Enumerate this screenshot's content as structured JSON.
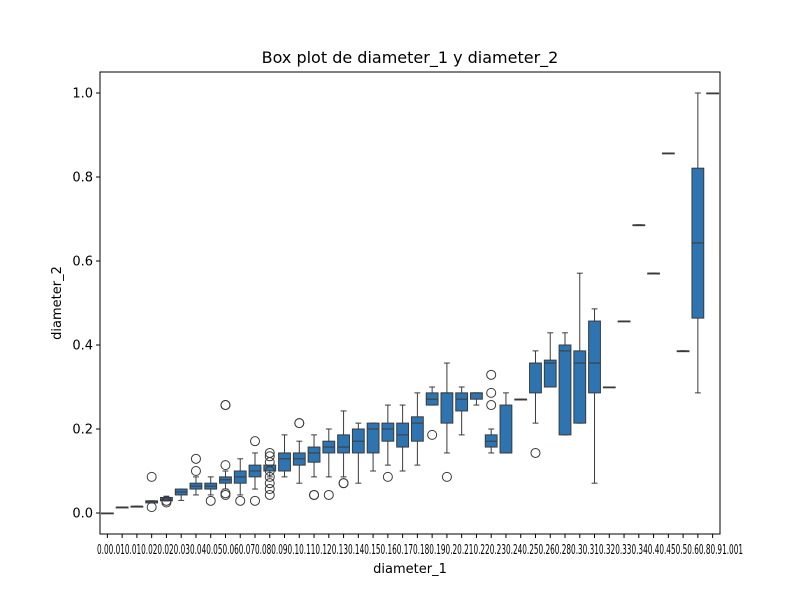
{
  "chart_data": {
    "type": "box",
    "title": "Box plot de diameter_1 y diameter_2",
    "xlabel": "diameter_1",
    "ylabel": "diameter_2",
    "ylim": [
      -0.05,
      1.05
    ],
    "y_ticks": [
      "0.0",
      "0.2",
      "0.4",
      "0.6",
      "0.8",
      "1.0"
    ],
    "y_tick_values": [
      0.0,
      0.2,
      0.4,
      0.6,
      0.8,
      1.0
    ],
    "box_color": "#2e74b0",
    "line_color": "#3a3a3a",
    "grid": false,
    "categories": [
      "0.0",
      "0.01",
      "0.01",
      "0.02",
      "0.02",
      "0.03",
      "0.04",
      "0.05",
      "0.06",
      "0.07",
      "0.08",
      "0.09",
      "0.1",
      "0.11",
      "0.12",
      "0.13",
      "0.14",
      "0.15",
      "0.16",
      "0.17",
      "0.18",
      "0.19",
      "0.2",
      "0.21",
      "0.22",
      "0.23",
      "0.24",
      "0.25",
      "0.26",
      "0.28",
      "0.3",
      "0.31",
      "0.32",
      "0.33",
      "0.34",
      "0.4",
      "0.45",
      "0.5",
      "0.6",
      "0.8",
      "0.9",
      "1.0"
    ],
    "x_tick_text": "0.00.010.010.020.020.030.040.050.060.070.080.090.10.110.120.130.140.150.160.170.180.190.20.210.220.230.240.250.260.280.30.310.320.330.340.40.450.50.60.80.91.001",
    "boxes": [
      {
        "x": 0.0,
        "min": 0.0,
        "q1": 0.0,
        "median": 0.0,
        "q3": 0.0,
        "max": 0.0,
        "outliers": []
      },
      {
        "x": 0.01,
        "min": 0.014,
        "q1": 0.014,
        "median": 0.014,
        "q3": 0.014,
        "max": 0.014,
        "outliers": []
      },
      {
        "x": 0.01,
        "min": 0.016,
        "q1": 0.016,
        "median": 0.016,
        "q3": 0.016,
        "max": 0.016,
        "outliers": []
      },
      {
        "x": 0.02,
        "min": 0.024,
        "q1": 0.024,
        "median": 0.027,
        "q3": 0.029,
        "max": 0.029,
        "outliers": [
          0.086,
          0.014
        ]
      },
      {
        "x": 0.02,
        "min": 0.029,
        "q1": 0.029,
        "median": 0.031,
        "q3": 0.037,
        "max": 0.04,
        "outliers": [
          0.029,
          0.025
        ]
      },
      {
        "x": 0.03,
        "min": 0.03,
        "q1": 0.043,
        "median": 0.05,
        "q3": 0.057,
        "max": 0.057,
        "outliers": []
      },
      {
        "x": 0.04,
        "min": 0.043,
        "q1": 0.057,
        "median": 0.064,
        "q3": 0.071,
        "max": 0.086,
        "outliers": [
          0.129,
          0.1
        ]
      },
      {
        "x": 0.05,
        "min": 0.043,
        "q1": 0.057,
        "median": 0.064,
        "q3": 0.071,
        "max": 0.086,
        "outliers": [
          0.029
        ]
      },
      {
        "x": 0.06,
        "min": 0.057,
        "q1": 0.071,
        "median": 0.079,
        "q3": 0.086,
        "max": 0.1,
        "outliers": [
          0.257,
          0.257,
          0.114,
          0.043,
          0.047
        ]
      },
      {
        "x": 0.07,
        "min": 0.043,
        "q1": 0.071,
        "median": 0.086,
        "q3": 0.1,
        "max": 0.129,
        "outliers": [
          0.029
        ]
      },
      {
        "x": 0.08,
        "min": 0.057,
        "q1": 0.086,
        "median": 0.1,
        "q3": 0.114,
        "max": 0.143,
        "outliers": [
          0.171,
          0.029
        ]
      },
      {
        "x": 0.09,
        "min": 0.086,
        "q1": 0.1,
        "median": 0.1,
        "q3": 0.114,
        "max": 0.114,
        "outliers": [
          0.143,
          0.135,
          0.121,
          0.1,
          0.086,
          0.071,
          0.057,
          0.043
        ]
      },
      {
        "x": 0.1,
        "min": 0.086,
        "q1": 0.1,
        "median": 0.129,
        "q3": 0.143,
        "max": 0.186,
        "outliers": []
      },
      {
        "x": 0.11,
        "min": 0.071,
        "q1": 0.114,
        "median": 0.129,
        "q3": 0.143,
        "max": 0.171,
        "outliers": [
          0.214,
          0.214
        ]
      },
      {
        "x": 0.12,
        "min": 0.086,
        "q1": 0.121,
        "median": 0.143,
        "q3": 0.157,
        "max": 0.186,
        "outliers": [
          0.043,
          0.043
        ]
      },
      {
        "x": 0.13,
        "min": 0.086,
        "q1": 0.143,
        "median": 0.157,
        "q3": 0.171,
        "max": 0.2,
        "outliers": [
          0.043
        ]
      },
      {
        "x": 0.14,
        "min": 0.086,
        "q1": 0.143,
        "median": 0.157,
        "q3": 0.186,
        "max": 0.243,
        "outliers": [
          0.071,
          0.071
        ]
      },
      {
        "x": 0.15,
        "min": 0.071,
        "q1": 0.143,
        "median": 0.171,
        "q3": 0.2,
        "max": 0.214,
        "outliers": []
      },
      {
        "x": 0.16,
        "min": 0.1,
        "q1": 0.143,
        "median": 0.2,
        "q3": 0.214,
        "max": 0.214,
        "outliers": []
      },
      {
        "x": 0.17,
        "min": 0.114,
        "q1": 0.171,
        "median": 0.2,
        "q3": 0.214,
        "max": 0.257,
        "outliers": [
          0.086
        ]
      },
      {
        "x": 0.18,
        "min": 0.1,
        "q1": 0.157,
        "median": 0.186,
        "q3": 0.214,
        "max": 0.257,
        "outliers": []
      },
      {
        "x": 0.19,
        "min": 0.114,
        "q1": 0.171,
        "median": 0.214,
        "q3": 0.229,
        "max": 0.286,
        "outliers": []
      },
      {
        "x": 0.2,
        "min": 0.257,
        "q1": 0.257,
        "median": 0.271,
        "q3": 0.286,
        "max": 0.3,
        "outliers": [
          0.186
        ]
      },
      {
        "x": 0.21,
        "min": 0.143,
        "q1": 0.214,
        "median": 0.286,
        "q3": 0.286,
        "max": 0.357,
        "outliers": [
          0.086
        ]
      },
      {
        "x": 0.22,
        "min": 0.186,
        "q1": 0.243,
        "median": 0.271,
        "q3": 0.286,
        "max": 0.3,
        "outliers": []
      },
      {
        "x": 0.23,
        "min": 0.257,
        "q1": 0.271,
        "median": 0.286,
        "q3": 0.286,
        "max": 0.286,
        "outliers": []
      },
      {
        "x": 0.24,
        "min": 0.143,
        "q1": 0.157,
        "median": 0.171,
        "q3": 0.186,
        "max": 0.2,
        "outliers": [
          0.329,
          0.286,
          0.257
        ]
      },
      {
        "x": 0.25,
        "min": 0.143,
        "q1": 0.143,
        "median": 0.143,
        "q3": 0.257,
        "max": 0.286,
        "outliers": []
      },
      {
        "x": 0.26,
        "min": 0.271,
        "q1": 0.271,
        "median": 0.271,
        "q3": 0.271,
        "max": 0.271,
        "outliers": []
      },
      {
        "x": 0.28,
        "min": 0.214,
        "q1": 0.286,
        "median": 0.357,
        "q3": 0.357,
        "max": 0.386,
        "outliers": [
          0.143
        ]
      },
      {
        "x": 0.3,
        "min": 0.3,
        "q1": 0.3,
        "median": 0.357,
        "q3": 0.364,
        "max": 0.429,
        "outliers": []
      },
      {
        "x": 0.31,
        "min": 0.186,
        "q1": 0.186,
        "median": 0.386,
        "q3": 0.4,
        "max": 0.429,
        "outliers": []
      },
      {
        "x": 0.32,
        "min": 0.214,
        "q1": 0.214,
        "median": 0.357,
        "q3": 0.386,
        "max": 0.571,
        "outliers": []
      },
      {
        "x": 0.33,
        "min": 0.071,
        "q1": 0.286,
        "median": 0.357,
        "q3": 0.457,
        "max": 0.486,
        "outliers": []
      },
      {
        "x": 0.34,
        "min": 0.3,
        "q1": 0.3,
        "median": 0.3,
        "q3": 0.3,
        "max": 0.3,
        "outliers": []
      },
      {
        "x": 0.4,
        "min": 0.457,
        "q1": 0.457,
        "median": 0.457,
        "q3": 0.457,
        "max": 0.457,
        "outliers": []
      },
      {
        "x": 0.45,
        "min": 0.686,
        "q1": 0.686,
        "median": 0.686,
        "q3": 0.686,
        "max": 0.686,
        "outliers": []
      },
      {
        "x": 0.5,
        "min": 0.571,
        "q1": 0.571,
        "median": 0.571,
        "q3": 0.571,
        "max": 0.571,
        "outliers": []
      },
      {
        "x": 0.6,
        "min": 0.857,
        "q1": 0.857,
        "median": 0.857,
        "q3": 0.857,
        "max": 0.857,
        "outliers": []
      },
      {
        "x": 0.8,
        "min": 0.386,
        "q1": 0.386,
        "median": 0.386,
        "q3": 0.386,
        "max": 0.386,
        "outliers": []
      },
      {
        "x": 0.9,
        "min": 0.286,
        "q1": 0.464,
        "median": 0.643,
        "q3": 0.821,
        "max": 1.0,
        "outliers": []
      },
      {
        "x": 1.0,
        "min": 1.0,
        "q1": 1.0,
        "median": 1.0,
        "q3": 1.0,
        "max": 1.0,
        "outliers": []
      }
    ]
  }
}
